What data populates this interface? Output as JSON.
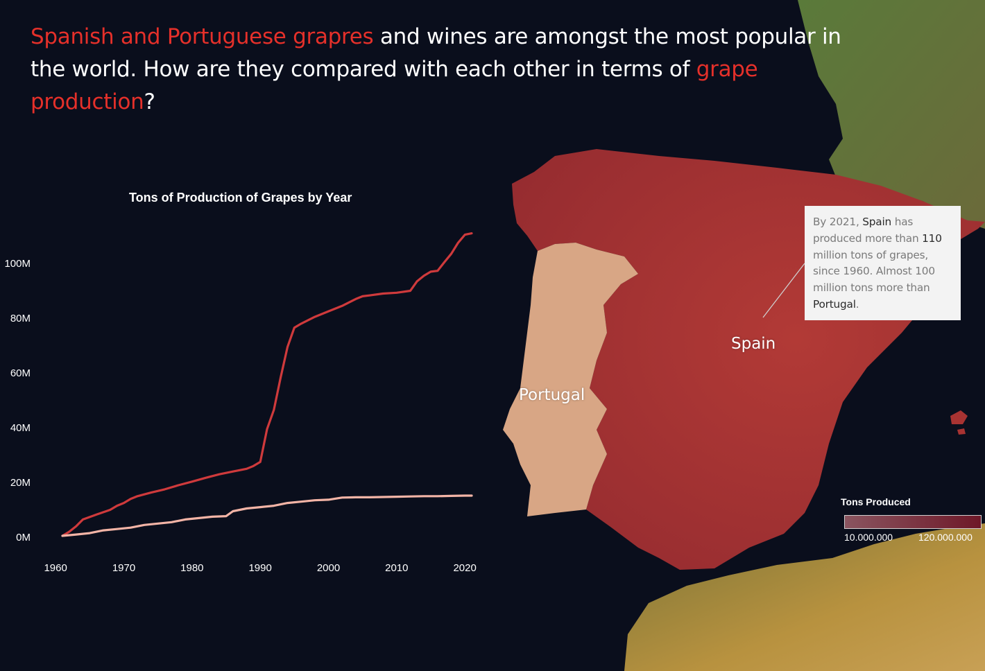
{
  "headline": {
    "part1_red": "Spanish and Portuguese grapres",
    "part2": " and wines are amongst the most popular in the world. How are they compared with each other in terms of ",
    "part3_red": "grape production",
    "part4": "?"
  },
  "colors": {
    "accent_red": "#e5302a",
    "spain_line": "#cf3a3c",
    "portugal_line": "#f3b4a6",
    "spain_fill": "#a83332",
    "portugal_fill": "#d8a685",
    "background": "#0a0e1c",
    "legend_low": "#8a5560",
    "legend_high": "#6e1828"
  },
  "chart_data": {
    "type": "line",
    "title": "Tons of Production of Grapes by Year",
    "xlabel": "",
    "ylabel": "",
    "x_ticks": [
      "1960",
      "1970",
      "1980",
      "1990",
      "2000",
      "2010",
      "2020"
    ],
    "y_ticks": [
      "0M",
      "20M",
      "40M",
      "60M",
      "80M",
      "100M"
    ],
    "xlim": [
      1961,
      2021
    ],
    "ylim": [
      0,
      112
    ],
    "grid": false,
    "series": [
      {
        "key": "spain",
        "x": [
          1961,
          1962,
          1963,
          1964,
          1966,
          1968,
          1969,
          1970,
          1971,
          1972,
          1974,
          1976,
          1978,
          1980,
          1982,
          1984,
          1986,
          1988,
          1989,
          1990,
          1991,
          1992,
          1993,
          1994,
          1995,
          1996,
          1998,
          2000,
          2002,
          2004,
          2005,
          2006,
          2008,
          2010,
          2012,
          2013,
          2014,
          2015,
          2016,
          2017,
          2018,
          2019,
          2020,
          2021
        ],
        "values": [
          1,
          2.5,
          4.5,
          7,
          8.8,
          10.5,
          12,
          13,
          14.5,
          15.5,
          16.8,
          18,
          19.5,
          20.8,
          22.2,
          23.5,
          24.5,
          25.5,
          26.5,
          28,
          40,
          47,
          59,
          70,
          77,
          78.5,
          81,
          83,
          85,
          87.5,
          88.5,
          88.8,
          89.5,
          89.8,
          90.5,
          94,
          96,
          97.5,
          97.8,
          101,
          104,
          108,
          111,
          111.5
        ],
        "color": "#cf3a3c"
      },
      {
        "key": "portugal",
        "x": [
          1961,
          1963,
          1965,
          1967,
          1969,
          1971,
          1973,
          1975,
          1977,
          1979,
          1981,
          1983,
          1985,
          1986,
          1988,
          1990,
          1992,
          1994,
          1996,
          1998,
          2000,
          2002,
          2004,
          2006,
          2008,
          2010,
          2012,
          2014,
          2016,
          2018,
          2020,
          2021
        ],
        "values": [
          1,
          1.5,
          2,
          3,
          3.5,
          4,
          5,
          5.5,
          6,
          7,
          7.5,
          8,
          8.2,
          10,
          11,
          11.5,
          12,
          13,
          13.5,
          14,
          14.2,
          15,
          15.1,
          15.1,
          15.2,
          15.3,
          15.4,
          15.5,
          15.5,
          15.6,
          15.7,
          15.7
        ],
        "color": "#f3b4a6"
      }
    ]
  },
  "map": {
    "labels": {
      "spain": "Spain",
      "portugal": "Portugal"
    }
  },
  "annotation": {
    "t1": "By 2021,",
    "t2": "Spain",
    "t3": "has produced more than",
    "t4": "110",
    "t5": "million tons of grapes, since 1960. Almost 100 million tons more than",
    "t6": "Portugal",
    "t7": "."
  },
  "legend": {
    "title": "Tons Produced",
    "min_label": "10.000.000",
    "max_label": "120.000.000"
  }
}
